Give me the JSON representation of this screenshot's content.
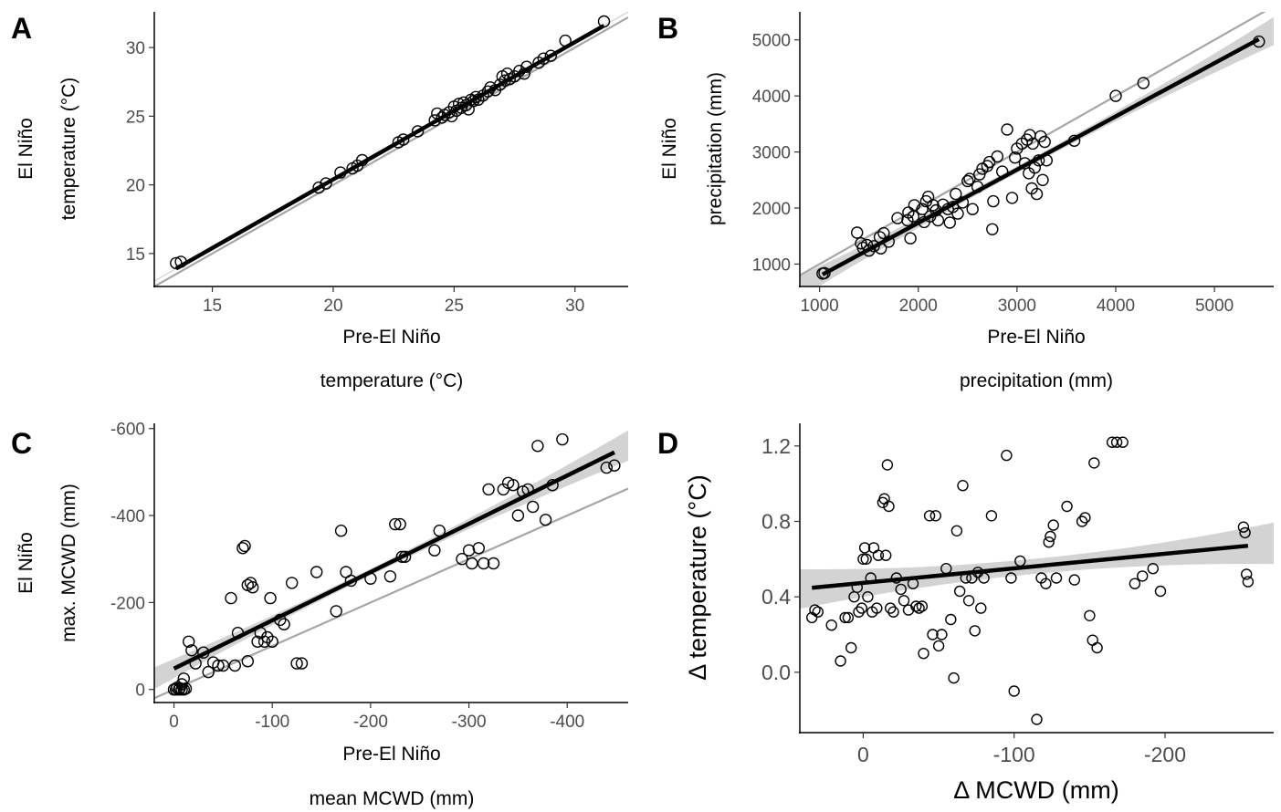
{
  "chart_data": [
    {
      "panel": "A",
      "type": "scatter",
      "xlabel_lines": [
        "Pre-El Niño",
        "temperature (°C)"
      ],
      "ylabel_lines": [
        "El Niño",
        "temperature (°C)"
      ],
      "xlim": [
        12.6,
        32.2
      ],
      "ylim": [
        12.6,
        32.6
      ],
      "xticks": [
        15,
        20,
        25,
        30
      ],
      "yticks": [
        15,
        20,
        25,
        30
      ],
      "identity_line": true,
      "fit": {
        "slope": 1.0,
        "intercept": 0.4,
        "ci_upper": [
          0.05,
          0.05
        ],
        "ci_lower": [
          0.05,
          0.05
        ]
      },
      "points": [
        [
          13.5,
          14.3
        ],
        [
          13.7,
          14.4
        ],
        [
          19.4,
          19.8
        ],
        [
          19.7,
          20.1
        ],
        [
          20.3,
          20.9
        ],
        [
          20.8,
          21.2
        ],
        [
          21.0,
          21.4
        ],
        [
          21.2,
          21.8
        ],
        [
          22.7,
          23.1
        ],
        [
          22.9,
          23.3
        ],
        [
          23.5,
          23.9
        ],
        [
          24.2,
          24.7
        ],
        [
          24.3,
          25.2
        ],
        [
          24.5,
          24.9
        ],
        [
          24.6,
          25.1
        ],
        [
          24.8,
          25.3
        ],
        [
          24.9,
          25.0
        ],
        [
          25.0,
          25.7
        ],
        [
          25.1,
          25.4
        ],
        [
          25.2,
          25.9
        ],
        [
          25.3,
          25.6
        ],
        [
          25.4,
          26.0
        ],
        [
          25.5,
          25.8
        ],
        [
          25.6,
          25.5
        ],
        [
          25.7,
          26.2
        ],
        [
          25.8,
          26.1
        ],
        [
          25.9,
          26.4
        ],
        [
          26.0,
          26.2
        ],
        [
          26.2,
          26.5
        ],
        [
          26.4,
          26.8
        ],
        [
          26.5,
          27.1
        ],
        [
          26.7,
          26.9
        ],
        [
          26.9,
          27.3
        ],
        [
          27.0,
          27.9
        ],
        [
          27.1,
          27.6
        ],
        [
          27.2,
          28.1
        ],
        [
          27.3,
          27.7
        ],
        [
          27.5,
          27.9
        ],
        [
          27.7,
          28.3
        ],
        [
          27.9,
          28.1
        ],
        [
          28.0,
          28.6
        ],
        [
          28.5,
          28.9
        ],
        [
          28.7,
          29.2
        ],
        [
          29.0,
          29.4
        ],
        [
          29.6,
          30.5
        ],
        [
          31.2,
          31.9
        ]
      ]
    },
    {
      "panel": "B",
      "type": "scatter",
      "xlabel_lines": [
        "Pre-El Niño",
        "precipitation (mm)"
      ],
      "ylabel_lines": [
        "El Niño",
        "precipitation (mm)"
      ],
      "xlim": [
        800,
        5600
      ],
      "ylim": [
        600,
        5500
      ],
      "xticks": [
        1000,
        2000,
        3000,
        4000,
        5000
      ],
      "yticks": [
        1000,
        2000,
        3000,
        4000,
        5000
      ],
      "identity_line": true,
      "fit": {
        "slope": 0.95,
        "intercept": -165,
        "band_low": 200,
        "band_mid": 60,
        "band_high": 250
      },
      "points": [
        [
          1030,
          830
        ],
        [
          1050,
          840
        ],
        [
          1380,
          1560
        ],
        [
          1420,
          1370
        ],
        [
          1440,
          1290
        ],
        [
          1480,
          1340
        ],
        [
          1500,
          1240
        ],
        [
          1550,
          1320
        ],
        [
          1610,
          1480
        ],
        [
          1620,
          1280
        ],
        [
          1650,
          1550
        ],
        [
          1700,
          1400
        ],
        [
          1790,
          1820
        ],
        [
          1890,
          1780
        ],
        [
          1900,
          1920
        ],
        [
          1920,
          1460
        ],
        [
          1950,
          1850
        ],
        [
          1960,
          2050
        ],
        [
          2040,
          1980
        ],
        [
          2060,
          1750
        ],
        [
          2080,
          2120
        ],
        [
          2100,
          2200
        ],
        [
          2120,
          1850
        ],
        [
          2150,
          2050
        ],
        [
          2180,
          1960
        ],
        [
          2200,
          1780
        ],
        [
          2250,
          2060
        ],
        [
          2300,
          1980
        ],
        [
          2320,
          1740
        ],
        [
          2350,
          2020
        ],
        [
          2380,
          2250
        ],
        [
          2400,
          1900
        ],
        [
          2450,
          2100
        ],
        [
          2500,
          2480
        ],
        [
          2520,
          2520
        ],
        [
          2550,
          1980
        ],
        [
          2600,
          2380
        ],
        [
          2620,
          2600
        ],
        [
          2650,
          2700
        ],
        [
          2700,
          2750
        ],
        [
          2720,
          2820
        ],
        [
          2750,
          1620
        ],
        [
          2760,
          2120
        ],
        [
          2800,
          2920
        ],
        [
          2850,
          2650
        ],
        [
          2900,
          3400
        ],
        [
          2950,
          2180
        ],
        [
          2980,
          2900
        ],
        [
          3000,
          3060
        ],
        [
          3050,
          3150
        ],
        [
          3080,
          2800
        ],
        [
          3100,
          3220
        ],
        [
          3120,
          2620
        ],
        [
          3130,
          3300
        ],
        [
          3150,
          2350
        ],
        [
          3160,
          3150
        ],
        [
          3180,
          2720
        ],
        [
          3200,
          2250
        ],
        [
          3220,
          2850
        ],
        [
          3240,
          3280
        ],
        [
          3260,
          2500
        ],
        [
          3280,
          3180
        ],
        [
          3300,
          2850
        ],
        [
          3580,
          3200
        ],
        [
          4000,
          4000
        ],
        [
          4280,
          4230
        ],
        [
          5450,
          4970
        ]
      ]
    },
    {
      "panel": "C",
      "type": "scatter",
      "xlabel_lines": [
        "Pre-El Niño",
        "mean MCWD (mm)"
      ],
      "ylabel_lines": [
        "El Niño",
        "max. MCWD (mm)"
      ],
      "xlim": [
        20,
        -462
      ],
      "ylim": [
        30,
        -612
      ],
      "xticks": [
        0,
        -100,
        -200,
        -300,
        -400
      ],
      "yticks": [
        0,
        -200,
        -400,
        -600
      ],
      "identity_line": true,
      "fit": {
        "slope": 1.11,
        "intercept": -48,
        "band_low": 25,
        "band_mid": 8,
        "band_high": 35
      },
      "points": [
        [
          0,
          0
        ],
        [
          -2,
          0
        ],
        [
          -3,
          -4
        ],
        [
          -5,
          0
        ],
        [
          -6,
          -3
        ],
        [
          -8,
          0
        ],
        [
          -10,
          0
        ],
        [
          -12,
          -2
        ],
        [
          -8,
          -12
        ],
        [
          -10,
          -25
        ],
        [
          -15,
          -110
        ],
        [
          -18,
          -90
        ],
        [
          -22,
          -60
        ],
        [
          -30,
          -85
        ],
        [
          -35,
          -40
        ],
        [
          -40,
          -62
        ],
        [
          -45,
          -55
        ],
        [
          -50,
          -55
        ],
        [
          -58,
          -210
        ],
        [
          -62,
          -55
        ],
        [
          -65,
          -130
        ],
        [
          -70,
          -325
        ],
        [
          -72,
          -330
        ],
        [
          -75,
          -65
        ],
        [
          -75,
          -240
        ],
        [
          -78,
          -245
        ],
        [
          -80,
          -235
        ],
        [
          -85,
          -110
        ],
        [
          -88,
          -130
        ],
        [
          -92,
          -110
        ],
        [
          -95,
          -120
        ],
        [
          -98,
          -210
        ],
        [
          -100,
          -110
        ],
        [
          -108,
          -160
        ],
        [
          -112,
          -150
        ],
        [
          -120,
          -245
        ],
        [
          -125,
          -60
        ],
        [
          -130,
          -60
        ],
        [
          -145,
          -270
        ],
        [
          -165,
          -180
        ],
        [
          -170,
          -365
        ],
        [
          -175,
          -270
        ],
        [
          -180,
          -250
        ],
        [
          -200,
          -255
        ],
        [
          -220,
          -260
        ],
        [
          -225,
          -380
        ],
        [
          -230,
          -380
        ],
        [
          -232,
          -305
        ],
        [
          -235,
          -305
        ],
        [
          -265,
          -320
        ],
        [
          -270,
          -365
        ],
        [
          -293,
          -300
        ],
        [
          -300,
          -320
        ],
        [
          -303,
          -290
        ],
        [
          -310,
          -325
        ],
        [
          -315,
          -290
        ],
        [
          -320,
          -460
        ],
        [
          -325,
          -290
        ],
        [
          -335,
          -460
        ],
        [
          -340,
          -475
        ],
        [
          -345,
          -470
        ],
        [
          -350,
          -400
        ],
        [
          -355,
          -455
        ],
        [
          -360,
          -460
        ],
        [
          -365,
          -420
        ],
        [
          -370,
          -560
        ],
        [
          -378,
          -390
        ],
        [
          -385,
          -470
        ],
        [
          -395,
          -575
        ],
        [
          -440,
          -510
        ],
        [
          -448,
          -515
        ]
      ]
    },
    {
      "panel": "D",
      "type": "scatter",
      "xlabel": "Δ MCWD (mm)",
      "ylabel": "Δ temperature (°C)",
      "xlim": [
        42,
        -272
      ],
      "ylim": [
        -0.32,
        1.32
      ],
      "xticks": [
        0,
        -100,
        -200
      ],
      "yticks": [
        0.0,
        0.4,
        0.8,
        1.2
      ],
      "fit": {
        "slope": -0.000772,
        "intercept": 0.474,
        "band_low": 0.105,
        "band_mid": 0.04,
        "band_high": 0.11
      },
      "points": [
        [
          34,
          0.29
        ],
        [
          32,
          0.33
        ],
        [
          30,
          0.32
        ],
        [
          21,
          0.25
        ],
        [
          15,
          0.06
        ],
        [
          12,
          0.29
        ],
        [
          10,
          0.29
        ],
        [
          8,
          0.13
        ],
        [
          6,
          0.4
        ],
        [
          4,
          0.45
        ],
        [
          3,
          0.32
        ],
        [
          1,
          0.34
        ],
        [
          0,
          0.6
        ],
        [
          -1,
          0.66
        ],
        [
          -2,
          0.6
        ],
        [
          -3,
          0.4
        ],
        [
          -5,
          0.5
        ],
        [
          -6,
          0.32
        ],
        [
          -7,
          0.66
        ],
        [
          -9,
          0.34
        ],
        [
          -10,
          0.62
        ],
        [
          -13,
          0.9
        ],
        [
          -14,
          0.92
        ],
        [
          -15,
          0.62
        ],
        [
          -16,
          1.1
        ],
        [
          -17,
          0.88
        ],
        [
          -18,
          0.34
        ],
        [
          -20,
          0.32
        ],
        [
          -22,
          0.5
        ],
        [
          -25,
          0.44
        ],
        [
          -27,
          0.38
        ],
        [
          -30,
          0.33
        ],
        [
          -33,
          0.47
        ],
        [
          -35,
          0.35
        ],
        [
          -37,
          0.34
        ],
        [
          -39,
          0.35
        ],
        [
          -40,
          0.1
        ],
        [
          -44,
          0.83
        ],
        [
          -46,
          0.2
        ],
        [
          -48,
          0.83
        ],
        [
          -50,
          0.14
        ],
        [
          -52,
          0.2
        ],
        [
          -55,
          0.55
        ],
        [
          -58,
          0.28
        ],
        [
          -60,
          -0.03
        ],
        [
          -62,
          0.75
        ],
        [
          -64,
          0.43
        ],
        [
          -66,
          0.99
        ],
        [
          -68,
          0.5
        ],
        [
          -70,
          0.38
        ],
        [
          -72,
          0.5
        ],
        [
          -74,
          0.22
        ],
        [
          -76,
          0.53
        ],
        [
          -78,
          0.34
        ],
        [
          -80,
          0.5
        ],
        [
          -85,
          0.83
        ],
        [
          -95,
          1.15
        ],
        [
          -98,
          0.5
        ],
        [
          -100,
          -0.1
        ],
        [
          -104,
          0.59
        ],
        [
          -115,
          -0.25
        ],
        [
          -118,
          0.5
        ],
        [
          -121,
          0.47
        ],
        [
          -123,
          0.69
        ],
        [
          -124,
          0.72
        ],
        [
          -126,
          0.78
        ],
        [
          -128,
          0.5
        ],
        [
          -135,
          0.88
        ],
        [
          -140,
          0.49
        ],
        [
          -145,
          0.8
        ],
        [
          -147,
          0.82
        ],
        [
          -150,
          0.3
        ],
        [
          -152,
          0.17
        ],
        [
          -153,
          1.11
        ],
        [
          -155,
          0.13
        ],
        [
          -165,
          1.22
        ],
        [
          -168,
          1.22
        ],
        [
          -172,
          1.22
        ],
        [
          -180,
          0.47
        ],
        [
          -185,
          0.51
        ],
        [
          -192,
          0.55
        ],
        [
          -197,
          0.43
        ],
        [
          -252,
          0.77
        ],
        [
          -253,
          0.74
        ],
        [
          -254,
          0.52
        ],
        [
          -255,
          0.48
        ]
      ]
    }
  ]
}
